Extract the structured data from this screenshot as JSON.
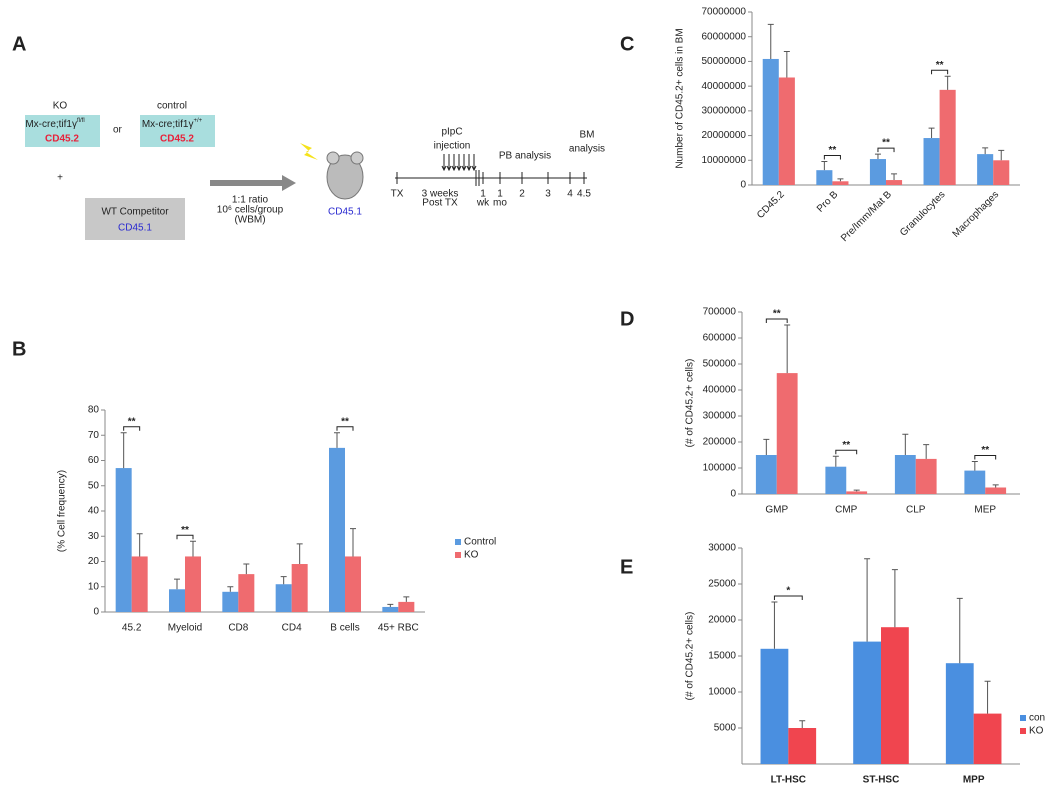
{
  "diagram": {
    "panel": "A",
    "ko": {
      "title": "KO",
      "genotype": "Mx-cre;tif1γ",
      "superscript": "fl/fl",
      "marker": "CD45.2"
    },
    "or": "or",
    "control": {
      "title": "control",
      "genotype": "Mx-cre;tif1γ",
      "superscript": "+/+",
      "marker": "CD45.2"
    },
    "plus": "+",
    "competitor": {
      "title": "WT Competitor",
      "marker": "CD45.1"
    },
    "arrow_label": [
      "1:1 ratio",
      "10⁶ cells/group",
      "(WBM)"
    ],
    "recipient": "CD45.1",
    "timeline": {
      "start": "TX",
      "delay": [
        "3 weeks",
        "Post TX"
      ],
      "injection": [
        "pIpC",
        "injection"
      ],
      "pb": "PB analysis",
      "bm": [
        "BM",
        "analysis"
      ],
      "ticks": [
        [
          "1",
          "wk"
        ],
        [
          "1",
          "mo"
        ],
        [
          "2"
        ],
        [
          "3"
        ],
        [
          "4"
        ],
        [
          "4.5"
        ]
      ]
    }
  },
  "chart_data": [
    {
      "type": "bar",
      "panel": "B",
      "y_label": "(% Cell frequency)",
      "categories": [
        "45.2",
        "Myeloid",
        "CD8",
        "CD4",
        "B cells",
        "45+ RBC"
      ],
      "series": [
        {
          "name": "Control",
          "color": "#5b9be0",
          "values": [
            57,
            9,
            8,
            11,
            65,
            2
          ],
          "errors": [
            14,
            4,
            2,
            3,
            6,
            1
          ]
        },
        {
          "name": "KO",
          "color": "#ef6b6f",
          "values": [
            22,
            22,
            15,
            19,
            22,
            4
          ],
          "errors": [
            9,
            6,
            4,
            8,
            11,
            2
          ]
        }
      ],
      "significance": [
        {
          "category": "45.2",
          "label": "**"
        },
        {
          "category": "Myeloid",
          "label": "**"
        },
        {
          "category": "B cells",
          "label": "**"
        }
      ],
      "ylim": [
        0,
        80
      ],
      "yticks": [
        0,
        10,
        20,
        30,
        40,
        50,
        60,
        70,
        80
      ],
      "legend": "right"
    },
    {
      "type": "bar",
      "panel": "C",
      "y_label": "Number of CD45.2+ cells in BM",
      "categories": [
        "CD45.2",
        "Pro B",
        "Pre/Imm/Mat B",
        "Granulocytes",
        "Macrophages"
      ],
      "series": [
        {
          "color": "#5b9be0",
          "values": [
            51000000,
            6000000,
            10500000,
            19000000,
            12500000
          ],
          "errors": [
            14000000,
            3500000,
            2000000,
            4000000,
            2500000
          ]
        },
        {
          "color": "#ef6b6f",
          "values": [
            43500000,
            1500000,
            2000000,
            38500000,
            10000000
          ],
          "errors": [
            10500000,
            1000000,
            2500000,
            5500000,
            4000000
          ]
        }
      ],
      "significance": [
        {
          "category": "Pro B",
          "label": "**"
        },
        {
          "category": "Pre/Imm/Mat B",
          "label": "**"
        },
        {
          "category": "Granulocytes",
          "label": "**"
        }
      ],
      "ylim": [
        0,
        70000000
      ],
      "yticks": [
        0,
        10000000,
        20000000,
        30000000,
        40000000,
        50000000,
        60000000,
        70000000
      ],
      "rotate_labels": true
    },
    {
      "type": "bar",
      "panel": "D",
      "y_label": "(# of CD45.2+ cells)",
      "categories": [
        "GMP",
        "CMP",
        "CLP",
        "MEP"
      ],
      "series": [
        {
          "color": "#5b9be0",
          "values": [
            150000,
            105000,
            150000,
            90000
          ],
          "errors": [
            60000,
            40000,
            80000,
            35000
          ]
        },
        {
          "color": "#ef6b6f",
          "values": [
            465000,
            10000,
            135000,
            25000
          ],
          "errors": [
            185000,
            5000,
            55000,
            10000
          ]
        }
      ],
      "significance": [
        {
          "category": "GMP",
          "label": "**"
        },
        {
          "category": "CMP",
          "label": "**"
        },
        {
          "category": "MEP",
          "label": "**"
        }
      ],
      "ylim": [
        0,
        700000
      ],
      "yticks": [
        0,
        100000,
        200000,
        300000,
        400000,
        500000,
        600000,
        700000
      ]
    },
    {
      "type": "bar",
      "panel": "E",
      "y_label": "(# of CD45.2+ cells)",
      "categories": [
        "LT-HSC",
        "ST-HSC",
        "MPP"
      ],
      "series": [
        {
          "name": "con",
          "color": "#4a8fe0",
          "values": [
            16000,
            17000,
            14000
          ],
          "errors": [
            6500,
            11500,
            9000
          ]
        },
        {
          "name": "KO",
          "color": "#f0454f",
          "values": [
            5000,
            19000,
            7000
          ],
          "errors": [
            1000,
            8000,
            4500
          ]
        }
      ],
      "significance": [
        {
          "category": "LT-HSC",
          "label": "*"
        }
      ],
      "ylim": [
        0,
        30000
      ],
      "yticks": [
        5000,
        10000,
        15000,
        20000,
        25000,
        30000
      ],
      "legend": "right",
      "bold_labels": true
    }
  ]
}
